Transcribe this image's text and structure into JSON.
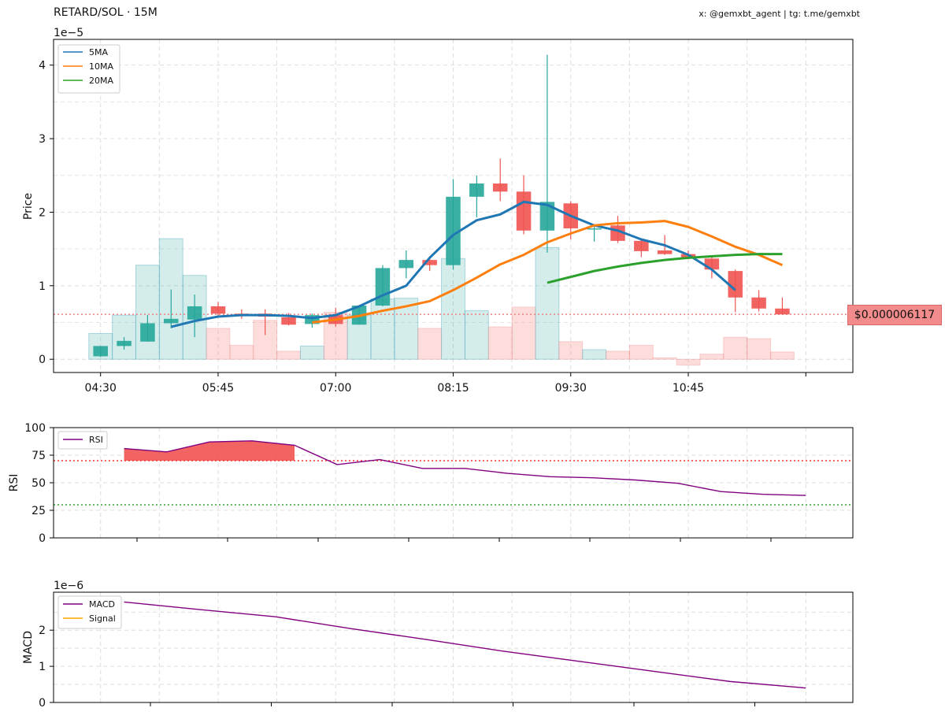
{
  "header": {
    "title": "RETARD/SOL · 15M",
    "credit": "x: @gemxbt_agent | tg: t.me/gemxbt"
  },
  "current_price_label": "$0.000006117",
  "colors": {
    "up": "#26a69a",
    "down": "#ef5350",
    "ma5": "#1f77b4",
    "ma10": "#ff7f0e",
    "ma20": "#2ca02c",
    "rsi": "#800080",
    "macd": "#800080",
    "signal": "#ffa500",
    "price_line": "#f08080"
  },
  "chart_data": [
    {
      "type": "candlestick",
      "name": "price",
      "ylabel": "Price",
      "y_multiplier": "1e−5",
      "ylim": [
        -0.18,
        4.35
      ],
      "yticks": [
        0,
        1,
        2,
        3,
        4
      ],
      "x_tick_labels": [
        "04:30",
        "05:45",
        "07:00",
        "08:15",
        "09:30",
        "10:45"
      ],
      "x_tick_times": [
        "04:30",
        "05:45",
        "07:00",
        "08:15",
        "09:30",
        "10:45"
      ],
      "grid": true,
      "legend": {
        "position": "top-left",
        "entries": [
          "5MA",
          "10MA",
          "20MA"
        ]
      },
      "current_price": 0.6117,
      "candles": [
        {
          "time": "04:30",
          "open": 0.04,
          "high": 0.18,
          "low": 0.03,
          "close": 0.18,
          "volume": 0.35
        },
        {
          "time": "04:45",
          "open": 0.18,
          "high": 0.3,
          "low": 0.13,
          "close": 0.25,
          "volume": 0.6
        },
        {
          "time": "05:00",
          "open": 0.24,
          "high": 0.6,
          "low": 0.24,
          "close": 0.49,
          "volume": 1.28
        },
        {
          "time": "05:15",
          "open": 0.49,
          "high": 0.95,
          "low": 0.42,
          "close": 0.55,
          "volume": 1.64
        },
        {
          "time": "05:30",
          "open": 0.54,
          "high": 0.88,
          "low": 0.3,
          "close": 0.72,
          "volume": 1.14
        },
        {
          "time": "05:45",
          "open": 0.72,
          "high": 0.78,
          "low": 0.57,
          "close": 0.62,
          "volume": 0.42
        },
        {
          "time": "06:00",
          "open": 0.62,
          "high": 0.68,
          "low": 0.55,
          "close": 0.6,
          "volume": 0.19
        },
        {
          "time": "06:15",
          "open": 0.62,
          "high": 0.68,
          "low": 0.33,
          "close": 0.58,
          "volume": 0.53
        },
        {
          "time": "06:30",
          "open": 0.57,
          "high": 0.63,
          "low": 0.46,
          "close": 0.47,
          "volume": 0.11
        },
        {
          "time": "06:45",
          "open": 0.48,
          "high": 0.62,
          "low": 0.43,
          "close": 0.6,
          "volume": 0.18
        },
        {
          "time": "07:00",
          "open": 0.6,
          "high": 0.7,
          "low": 0.44,
          "close": 0.48,
          "volume": 0.64
        },
        {
          "time": "07:15",
          "open": 0.47,
          "high": 0.73,
          "low": 0.47,
          "close": 0.73,
          "volume": 0.6
        },
        {
          "time": "07:30",
          "open": 0.73,
          "high": 1.28,
          "low": 0.72,
          "close": 1.24,
          "volume": 0.82
        },
        {
          "time": "07:45",
          "open": 1.24,
          "high": 1.48,
          "low": 1.1,
          "close": 1.35,
          "volume": 0.83
        },
        {
          "time": "08:00",
          "open": 1.35,
          "high": 1.4,
          "low": 1.2,
          "close": 1.28,
          "volume": 0.42
        },
        {
          "time": "08:15",
          "open": 1.28,
          "high": 2.45,
          "low": 1.22,
          "close": 2.21,
          "volume": 1.37
        },
        {
          "time": "08:30",
          "open": 2.21,
          "high": 2.5,
          "low": 1.93,
          "close": 2.39,
          "volume": 0.66
        },
        {
          "time": "08:45",
          "open": 2.39,
          "high": 2.73,
          "low": 2.15,
          "close": 2.28,
          "volume": 0.44
        },
        {
          "time": "09:00",
          "open": 2.28,
          "high": 2.5,
          "low": 1.7,
          "close": 1.75,
          "volume": 0.71
        },
        {
          "time": "09:15",
          "open": 1.75,
          "high": 4.14,
          "low": 1.45,
          "close": 2.14,
          "volume": 1.52
        },
        {
          "time": "09:30",
          "open": 2.12,
          "high": 2.15,
          "low": 1.63,
          "close": 1.78,
          "volume": 0.24
        },
        {
          "time": "09:45",
          "open": 1.78,
          "high": 1.82,
          "low": 1.6,
          "close": 1.78,
          "volume": 0.13
        },
        {
          "time": "10:00",
          "open": 1.82,
          "high": 1.95,
          "low": 1.58,
          "close": 1.61,
          "volume": 0.11
        },
        {
          "time": "10:15",
          "open": 1.61,
          "high": 1.63,
          "low": 1.39,
          "close": 1.47,
          "volume": 0.19
        },
        {
          "time": "10:30",
          "open": 1.48,
          "high": 1.69,
          "low": 1.42,
          "close": 1.43,
          "volume": 0.02
        },
        {
          "time": "10:45",
          "open": 1.43,
          "high": 1.48,
          "low": 1.36,
          "close": 1.37,
          "volume": -0.08
        },
        {
          "time": "11:00",
          "open": 1.37,
          "high": 1.4,
          "low": 1.1,
          "close": 1.22,
          "volume": 0.07
        },
        {
          "time": "11:15",
          "open": 1.2,
          "high": 1.22,
          "low": 0.64,
          "close": 0.84,
          "volume": 0.3
        },
        {
          "time": "11:30",
          "open": 0.84,
          "high": 0.94,
          "low": 0.65,
          "close": 0.69,
          "volume": 0.28
        },
        {
          "time": "11:45",
          "open": 0.69,
          "high": 0.84,
          "low": 0.61,
          "close": 0.61,
          "volume": 0.1
        }
      ],
      "series": [
        {
          "name": "5MA",
          "start": "05:15",
          "values": [
            0.44,
            0.52,
            0.58,
            0.6,
            0.6,
            0.59,
            0.56,
            0.6,
            0.72,
            0.87,
            1.0,
            1.38,
            1.69,
            1.89,
            1.97,
            2.14,
            2.1,
            1.95,
            1.82,
            1.75,
            1.63,
            1.55,
            1.42,
            1.22,
            0.94
          ]
        },
        {
          "name": "10MA",
          "start": "06:45",
          "values": [
            0.5,
            0.54,
            0.59,
            0.66,
            0.72,
            0.79,
            0.94,
            1.11,
            1.29,
            1.42,
            1.59,
            1.71,
            1.82,
            1.85,
            1.86,
            1.88,
            1.8,
            1.67,
            1.53,
            1.42,
            1.28
          ]
        },
        {
          "name": "20MA",
          "start": "09:15",
          "values": [
            1.04,
            1.12,
            1.2,
            1.26,
            1.31,
            1.35,
            1.38,
            1.4,
            1.42,
            1.43,
            1.43
          ]
        }
      ]
    },
    {
      "type": "line",
      "name": "rsi",
      "ylabel": "RSI",
      "ylim": [
        0,
        100
      ],
      "yticks": [
        0,
        25,
        50,
        75,
        100
      ],
      "overbought": 70,
      "oversold": 30,
      "grid": true,
      "legend": {
        "position": "top-left",
        "entries": [
          "RSI"
        ]
      },
      "series": [
        {
          "name": "RSI",
          "start": "04:45",
          "values": [
            81,
            78,
            87,
            88,
            84,
            66.5,
            71,
            63,
            63,
            58.5,
            55.5,
            54.5,
            52.5,
            49.5,
            42,
            39.5,
            38.5
          ]
        }
      ],
      "x_start": "04:45"
    },
    {
      "type": "line",
      "name": "macd",
      "ylabel": "MACD",
      "y_multiplier": "1e−6",
      "ylim": [
        0,
        3.05
      ],
      "yticks": [
        0,
        1,
        2
      ],
      "grid": true,
      "legend": {
        "position": "top-left",
        "entries": [
          "MACD",
          "Signal"
        ]
      },
      "series": [
        {
          "name": "MACD",
          "start": "04:45",
          "values": [
            2.78,
            2.57,
            2.37,
            2.04,
            1.74,
            1.42,
            1.14,
            0.86,
            0.58,
            0.4
          ]
        },
        {
          "name": "Signal",
          "values": []
        }
      ]
    }
  ]
}
